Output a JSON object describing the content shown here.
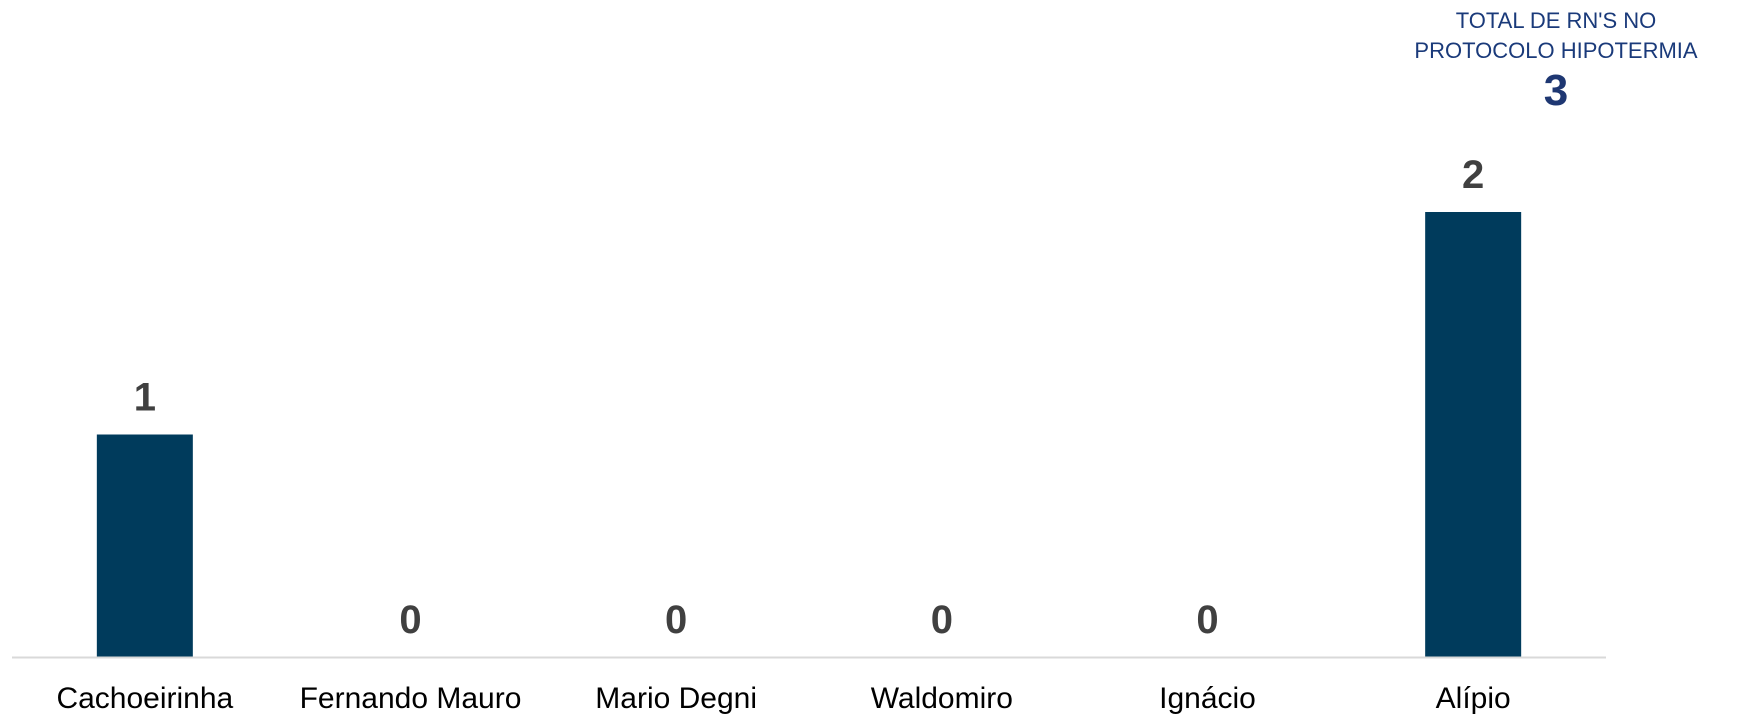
{
  "summary": {
    "label": "TOTAL DE  RN'S NO\nPROTOCOLO HIPOTERMIA",
    "value": "3"
  },
  "colors": {
    "bar": "#003b5c",
    "axis": "#d9d9d9",
    "value_label": "#404040",
    "category_label": "#000000",
    "summary_text": "#1a3a7a"
  },
  "chart_data": {
    "type": "bar",
    "categories": [
      "Cachoeirinha",
      "Fernando Mauro",
      "Mario Degni",
      "Waldomiro",
      "Ignácio",
      "Alípio"
    ],
    "values": [
      1,
      0,
      0,
      0,
      0,
      2
    ],
    "title": "",
    "xlabel": "",
    "ylabel": "",
    "ylim": [
      0,
      2
    ],
    "grid": false,
    "data_labels": true
  }
}
